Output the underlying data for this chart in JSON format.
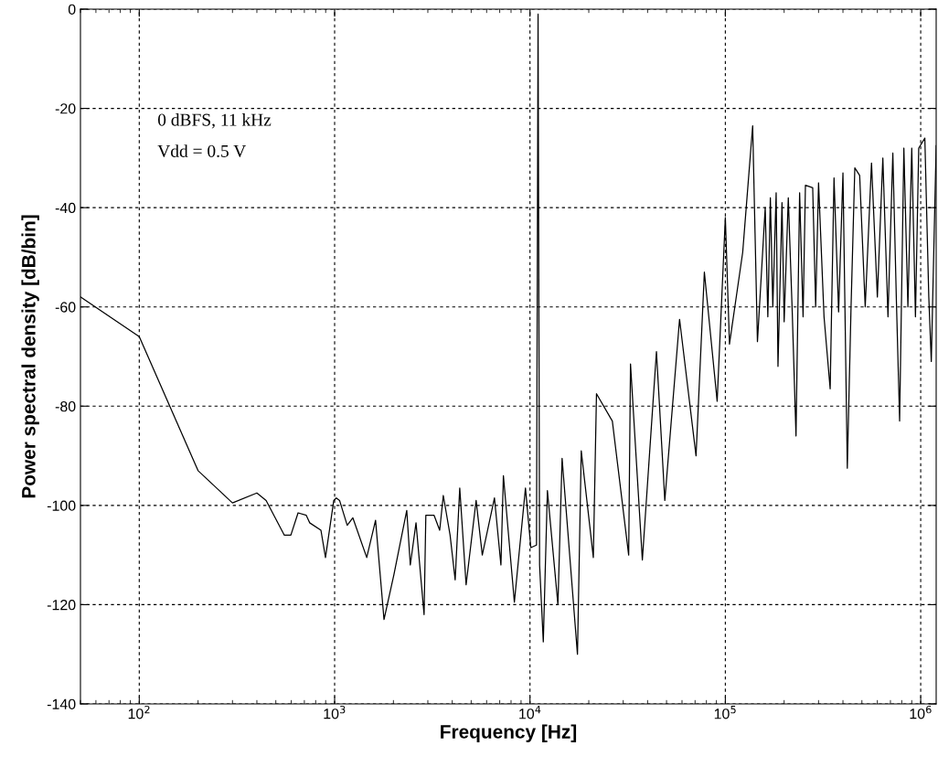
{
  "chart_data": {
    "type": "line",
    "xlabel": "Frequency [Hz]",
    "ylabel": "Power spectral density [dB/bin]",
    "annotations": [
      "0 dBFS, 11 kHz",
      "Vdd = 0.5 V"
    ],
    "log": "x",
    "grid": true,
    "legend": false,
    "marker": "none",
    "line_style": "solid",
    "xlim": [
      50,
      1200000
    ],
    "ylim": [
      -140,
      0
    ],
    "xticks": [
      {
        "value": 100,
        "label": "10$^{2}$"
      },
      {
        "value": 1000,
        "label": "10$^{3}$"
      },
      {
        "value": 10000,
        "label": "10$^{4}$"
      },
      {
        "value": 100000,
        "label": "10$^{5}$"
      },
      {
        "value": 1000000,
        "label": "10$^{6}$"
      }
    ],
    "yticks": [
      -140,
      -120,
      -100,
      -80,
      -60,
      -40,
      -20,
      0
    ],
    "series": [
      {
        "color": "#000000",
        "x": [
          50,
          100,
          200,
          300,
          400,
          446,
          553,
          597,
          650,
          716,
          745,
          851,
          898,
          990,
          1020,
          1060,
          1160,
          1240,
          1460,
          1620,
          1790,
          2010,
          2340,
          2440,
          2610,
          2870,
          2930,
          3230,
          3450,
          3600,
          3900,
          4140,
          4370,
          4710,
          5300,
          5700,
          6580,
          7100,
          7310,
          8320,
          9480,
          10100,
          10800,
          11000,
          11200,
          11700,
          12280,
          13900,
          14600,
          17500,
          18300,
          21100,
          21900,
          26400,
          32000,
          32700,
          37600,
          44400,
          49000,
          58300,
          70800,
          78100,
          90800,
          100000,
          105000,
          122700,
          138000,
          146000,
          160000,
          165000,
          170000,
          175000,
          182000,
          186000,
          195000,
          200000,
          210000,
          220000,
          230000,
          240000,
          250000,
          257000,
          280000,
          290000,
          300000,
          320000,
          344000,
          360000,
          380000,
          400000,
          421000,
          440000,
          460000,
          487000,
          520000,
          560000,
          600000,
          640000,
          680000,
          720000,
          750000,
          780000,
          820000,
          860000,
          900000,
          940000,
          977000,
          1050000,
          1100000,
          1133000,
          1200000
        ],
        "values": [
          -58,
          -66,
          -93,
          -99.5,
          -97.5,
          -99,
          -106,
          -106,
          -101.5,
          -102,
          -103.5,
          -105,
          -110.5,
          -99,
          -98.5,
          -99,
          -104,
          -102.5,
          -110.5,
          -103,
          -123,
          -114,
          -101,
          -112,
          -103.5,
          -122,
          -102,
          -102,
          -105,
          -98,
          -106,
          -115,
          -96.5,
          -116,
          -99,
          -110,
          -98.5,
          -112,
          -94,
          -119.5,
          -96.5,
          -108.5,
          -108,
          -1,
          -112,
          -127.5,
          -97,
          -120,
          -90.5,
          -130,
          -89,
          -110.5,
          -77.5,
          -83,
          -110,
          -71.5,
          -111,
          -69,
          -99,
          -62.5,
          -90,
          -53,
          -79,
          -42,
          -67.5,
          -49,
          -23.5,
          -67,
          -40,
          -62,
          -38,
          -60,
          -37,
          -72,
          -39,
          -63,
          -38,
          -61,
          -86,
          -37,
          -62,
          -35.5,
          -36,
          -60,
          -35,
          -62,
          -76.5,
          -34,
          -61,
          -33,
          -92.5,
          -60,
          -32,
          -33.5,
          -60,
          -31,
          -58,
          -30,
          -62,
          -29,
          -58,
          -83,
          -28,
          -60,
          -28,
          -62,
          -28,
          -26,
          -58,
          -71,
          -27.5
        ]
      }
    ]
  }
}
